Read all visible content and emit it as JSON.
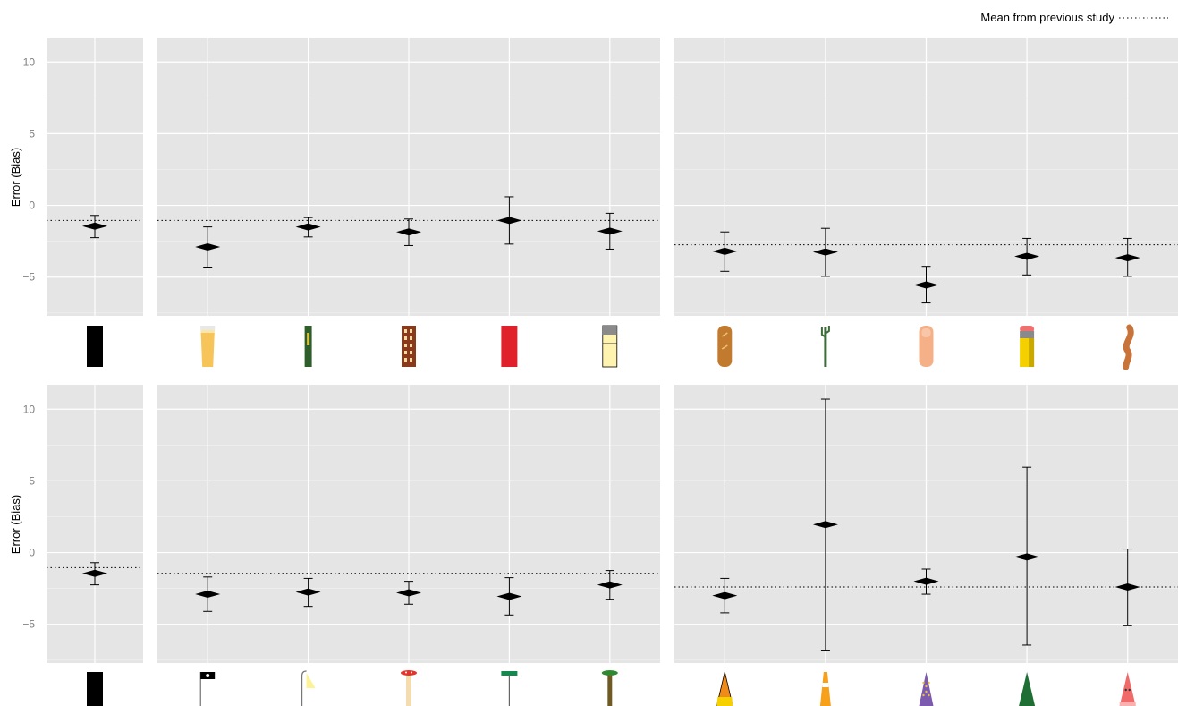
{
  "legend": {
    "label": "Mean from previous study",
    "line_style": "dotted"
  },
  "colors": {
    "panel_bg": "#e5e5e5",
    "grid_major": "#ffffff",
    "grid_minor": "#f2f2f2",
    "tick_text": "#7f7f7f",
    "marker": "#000000",
    "reference_line": "#000000"
  },
  "chart_data": [
    {
      "type": "scatter",
      "row": "top",
      "ylabel": "Error (Bias)",
      "yticks": [
        -5,
        0,
        5,
        10
      ],
      "ylim": [
        -7.7,
        11.7
      ],
      "groups": [
        {
          "id": "control",
          "categories": [
            "black-bar"
          ],
          "reference_mean": -1.05,
          "points": [
            {
              "mean": -1.45,
              "lower": -2.25,
              "upper": -0.7
            }
          ]
        },
        {
          "id": "containers",
          "categories": [
            "beer-glass",
            "book-spine",
            "building",
            "red-box",
            "refrigerator"
          ],
          "reference_mean": -1.05,
          "points": [
            {
              "mean": -2.9,
              "lower": -4.3,
              "upper": -1.5
            },
            {
              "mean": -1.5,
              "lower": -2.2,
              "upper": -0.85
            },
            {
              "mean": -1.85,
              "lower": -2.8,
              "upper": -0.95
            },
            {
              "mean": -1.05,
              "lower": -2.7,
              "upper": 0.6
            },
            {
              "mean": -1.8,
              "lower": -3.05,
              "upper": -0.55
            }
          ]
        },
        {
          "id": "elongated",
          "categories": [
            "baguette",
            "cactus",
            "finger",
            "pencil",
            "sausage"
          ],
          "reference_mean": -2.75,
          "points": [
            {
              "mean": -3.2,
              "lower": -4.6,
              "upper": -1.85
            },
            {
              "mean": -3.25,
              "lower": -4.95,
              "upper": -1.6
            },
            {
              "mean": -5.55,
              "lower": -6.8,
              "upper": -4.25
            },
            {
              "mean": -3.55,
              "lower": -4.85,
              "upper": -2.3
            },
            {
              "mean": -3.65,
              "lower": -4.95,
              "upper": -2.3
            }
          ]
        }
      ]
    },
    {
      "type": "scatter",
      "row": "bottom",
      "ylabel": "Error (Bias)",
      "yticks": [
        -5,
        0,
        5,
        10
      ],
      "ylim": [
        -7.7,
        11.7
      ],
      "groups": [
        {
          "id": "control",
          "categories": [
            "black-bar"
          ],
          "reference_mean": -1.05,
          "points": [
            {
              "mean": -1.45,
              "lower": -2.25,
              "upper": -0.7
            }
          ]
        },
        {
          "id": "posts",
          "categories": [
            "pirate-flag",
            "street-lamp",
            "mushroom",
            "street-sign",
            "tree"
          ],
          "reference_mean": -1.45,
          "points": [
            {
              "mean": -2.9,
              "lower": -4.1,
              "upper": -1.7
            },
            {
              "mean": -2.75,
              "lower": -3.75,
              "upper": -1.8
            },
            {
              "mean": -2.8,
              "lower": -3.6,
              "upper": -2.0
            },
            {
              "mean": -3.05,
              "lower": -4.35,
              "upper": -1.75
            },
            {
              "mean": -2.25,
              "lower": -3.25,
              "upper": -1.25
            }
          ]
        },
        {
          "id": "cones",
          "categories": [
            "candy-corn",
            "traffic-cone",
            "wizard-hat",
            "pine-tree",
            "party-hat"
          ],
          "reference_mean": -2.4,
          "points": [
            {
              "mean": -3.0,
              "lower": -4.2,
              "upper": -1.8
            },
            {
              "mean": 1.95,
              "lower": -6.8,
              "upper": 10.7
            },
            {
              "mean": -2.0,
              "lower": -2.9,
              "upper": -1.15
            },
            {
              "mean": -0.3,
              "lower": -6.45,
              "upper": 5.95
            },
            {
              "mean": -2.4,
              "lower": -5.1,
              "upper": 0.25
            }
          ]
        }
      ]
    }
  ]
}
